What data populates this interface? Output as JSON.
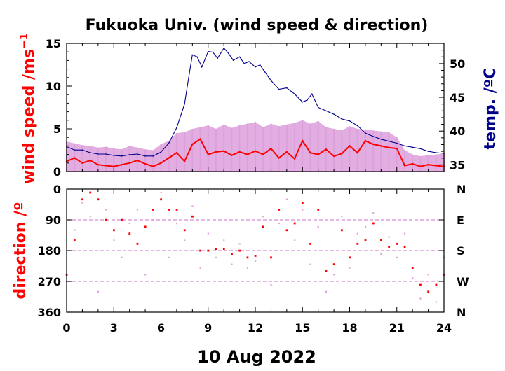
{
  "colors": {
    "wind_mean": "#ff0000",
    "wind_gust": "#dda0dd",
    "temperature": "#00008b",
    "dir_mean": "#ff0000",
    "dir_raw": "#dda0dd",
    "grid": "#dda0dd"
  },
  "chart_data": [
    {
      "type": "line",
      "title": "Fukuoka Univ. (wind speed & direction)",
      "ylabel": "wind speed /ms",
      "ylabel_superscript": "−1",
      "y2label": "temp. /ºC",
      "xlim": [
        0,
        24
      ],
      "ylim": [
        0,
        15
      ],
      "y2lim": [
        34,
        53
      ],
      "xticks": [
        "0",
        "3",
        "6",
        "9",
        "12",
        "15",
        "18",
        "21",
        "24"
      ],
      "yticks": [
        "0",
        "5",
        "10",
        "15"
      ],
      "y2ticks": [
        "35",
        "40",
        "45",
        "50"
      ],
      "series": [
        {
          "key": "wind_gust",
          "style": "band",
          "x": [
            0,
            0.5,
            1,
            1.5,
            2,
            2.5,
            3,
            3.5,
            4,
            4.5,
            5,
            5.5,
            6,
            6.5,
            7,
            7.5,
            8,
            8.5,
            9,
            9.5,
            10,
            10.5,
            11,
            11.5,
            12,
            12.5,
            13,
            13.5,
            14,
            14.5,
            15,
            15.5,
            16,
            16.5,
            17,
            17.5,
            18,
            18.5,
            19,
            19.5,
            20,
            20.5,
            21,
            21.5,
            22,
            22.5,
            23,
            23.5,
            24
          ],
          "values": [
            3.5,
            3.3,
            3.1,
            3.0,
            2.8,
            2.9,
            2.7,
            2.6,
            3.0,
            2.8,
            2.6,
            2.5,
            3.2,
            3.6,
            4.5,
            4.6,
            5.0,
            5.2,
            5.4,
            5.0,
            5.5,
            5.1,
            5.4,
            5.6,
            5.8,
            5.2,
            5.6,
            5.3,
            5.5,
            5.7,
            6.0,
            5.6,
            5.9,
            5.2,
            5.0,
            4.8,
            5.3,
            5.0,
            4.9,
            4.8,
            4.7,
            4.6,
            4.0,
            2.5,
            2.0,
            1.8,
            1.9,
            2.0,
            2.1
          ]
        },
        {
          "key": "wind_mean",
          "style": "line",
          "x": [
            0,
            0.5,
            1,
            1.5,
            2,
            2.5,
            3,
            3.5,
            4,
            4.5,
            5,
            5.5,
            6,
            6.5,
            7,
            7.5,
            8,
            8.5,
            9,
            9.5,
            10,
            10.5,
            11,
            11.5,
            12,
            12.5,
            13,
            13.5,
            14,
            14.5,
            15,
            15.5,
            16,
            16.5,
            17,
            17.5,
            18,
            18.5,
            19,
            19.5,
            20,
            20.5,
            21,
            21.5,
            22,
            22.5,
            23,
            23.5,
            24
          ],
          "values": [
            1.2,
            1.6,
            1.0,
            1.3,
            0.8,
            0.7,
            0.6,
            0.8,
            1.0,
            1.3,
            0.9,
            0.6,
            1.0,
            1.6,
            2.2,
            1.2,
            3.2,
            3.8,
            2.0,
            2.3,
            2.4,
            1.9,
            2.3,
            2.0,
            2.4,
            2.0,
            2.7,
            1.6,
            2.3,
            1.5,
            3.6,
            2.2,
            2.0,
            2.6,
            1.8,
            2.1,
            3.0,
            2.2,
            3.6,
            3.2,
            3.0,
            2.8,
            2.7,
            0.7,
            0.9,
            0.6,
            0.8,
            0.7,
            0.6
          ]
        },
        {
          "key": "temperature",
          "axis": "y2",
          "style": "line",
          "x": [
            0,
            0.5,
            1,
            1.5,
            2,
            2.5,
            3,
            3.5,
            4,
            4.5,
            5,
            5.5,
            6,
            6.5,
            7,
            7.5,
            7.8,
            8,
            8.3,
            8.6,
            9,
            9.3,
            9.6,
            10,
            10.3,
            10.6,
            11,
            11.3,
            11.6,
            12,
            12.3,
            12.6,
            13,
            13.5,
            14,
            14.5,
            15,
            15.3,
            15.6,
            16,
            16.5,
            17,
            17.5,
            18,
            18.5,
            19,
            19.5,
            20,
            20.5,
            21,
            21.5,
            22,
            22.5,
            23,
            23.5,
            24
          ],
          "values": [
            37.7,
            37.2,
            37.2,
            36.8,
            36.6,
            36.6,
            36.4,
            36.3,
            36.5,
            36.6,
            36.3,
            36.3,
            36.9,
            38.2,
            40.5,
            44.0,
            48.5,
            51.3,
            51.0,
            49.5,
            51.8,
            51.7,
            50.8,
            52.3,
            51.5,
            50.5,
            51.0,
            50.0,
            50.3,
            49.5,
            49.8,
            48.8,
            47.5,
            46.2,
            46.4,
            45.5,
            44.3,
            44.6,
            45.5,
            43.5,
            43.0,
            42.5,
            41.8,
            41.5,
            40.8,
            39.7,
            39.2,
            38.8,
            38.5,
            38.2,
            37.8,
            37.6,
            37.4,
            37.0,
            36.8,
            36.7
          ]
        }
      ]
    },
    {
      "type": "scatter",
      "ylabel": "direction /º",
      "xlabel": "10 Aug 2022",
      "xlim": [
        0,
        24
      ],
      "ylim": [
        360,
        0
      ],
      "xticks": [
        "0",
        "3",
        "6",
        "9",
        "12",
        "15",
        "18",
        "21",
        "24"
      ],
      "yticks": [
        "0",
        "90",
        "180",
        "270",
        "360"
      ],
      "y2ticks": [
        "N",
        "E",
        "S",
        "W",
        "N"
      ],
      "grid": true,
      "series": [
        {
          "key": "dir_mean",
          "x": [
            0,
            0.5,
            1,
            1.5,
            2,
            2.5,
            3,
            3.5,
            4,
            4.5,
            5,
            5.5,
            6,
            6.5,
            7,
            7.5,
            8,
            8.5,
            9,
            9.5,
            10,
            10.5,
            11,
            11.5,
            12,
            12.5,
            13,
            13.5,
            14,
            14.5,
            15,
            15.5,
            16,
            16.5,
            17,
            17.5,
            18,
            18.5,
            19,
            19.5,
            20,
            20.5,
            21,
            21.5,
            22,
            22.5,
            23,
            23.5,
            24
          ],
          "values": [
            250,
            150,
            30,
            10,
            30,
            90,
            120,
            90,
            130,
            160,
            110,
            60,
            30,
            60,
            60,
            120,
            80,
            180,
            180,
            175,
            175,
            190,
            180,
            200,
            195,
            110,
            200,
            60,
            120,
            100,
            40,
            160,
            60,
            240,
            220,
            120,
            200,
            160,
            150,
            100,
            150,
            170,
            160,
            170,
            230,
            280,
            300,
            280,
            250
          ]
        },
        {
          "key": "dir_raw",
          "x": [
            0,
            0.5,
            1,
            1.5,
            2,
            2.5,
            3,
            3.5,
            4,
            4.5,
            5,
            5.5,
            6,
            6.5,
            7,
            7.5,
            8,
            8.5,
            9,
            9.5,
            10,
            10.5,
            11,
            11.5,
            12,
            12.5,
            13,
            13.5,
            14,
            14.5,
            15,
            15.5,
            16,
            16.5,
            17,
            17.5,
            18,
            18.5,
            19,
            19.5,
            20,
            20.5,
            21,
            21.5,
            22,
            22.5,
            23,
            23.5,
            24
          ],
          "values": [
            270,
            120,
            40,
            80,
            300,
            60,
            150,
            200,
            100,
            60,
            250,
            90,
            10,
            200,
            100,
            150,
            50,
            230,
            130,
            200,
            150,
            220,
            160,
            230,
            210,
            80,
            280,
            100,
            30,
            150,
            60,
            220,
            110,
            300,
            250,
            80,
            230,
            130,
            110,
            70,
            190,
            140,
            200,
            130,
            260,
            320,
            250,
            330,
            200
          ]
        }
      ]
    }
  ]
}
